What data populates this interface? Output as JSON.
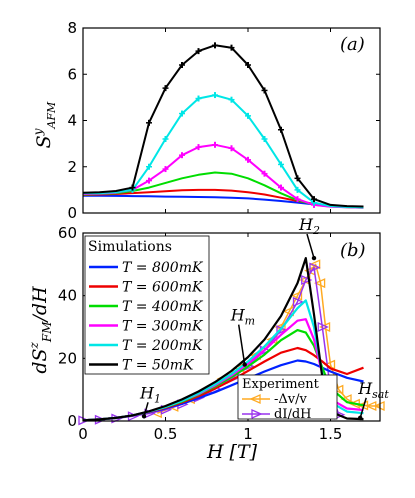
{
  "chart_data": [
    {
      "panel": "(a)",
      "type": "line",
      "ylabel": "S^y_AFM",
      "xlim": [
        0,
        1.8
      ],
      "ylim": [
        0,
        8
      ],
      "yticks": [
        0,
        2,
        4,
        6,
        8
      ],
      "x": [
        0,
        0.1,
        0.2,
        0.3,
        0.4,
        0.5,
        0.6,
        0.7,
        0.8,
        0.9,
        1.0,
        1.1,
        1.2,
        1.3,
        1.4,
        1.5,
        1.6,
        1.7
      ],
      "series": [
        {
          "name": "T = 800mK",
          "color": "#0022ff",
          "values": [
            0.75,
            0.75,
            0.74,
            0.73,
            0.72,
            0.71,
            0.7,
            0.69,
            0.68,
            0.66,
            0.63,
            0.58,
            0.52,
            0.45,
            0.37,
            0.3,
            0.26,
            0.24
          ]
        },
        {
          "name": "T = 600mK",
          "color": "#ee0000",
          "values": [
            0.78,
            0.8,
            0.82,
            0.86,
            0.9,
            0.94,
            0.98,
            1.0,
            1.0,
            0.97,
            0.9,
            0.8,
            0.66,
            0.52,
            0.4,
            0.31,
            0.26,
            0.24
          ]
        },
        {
          "name": "T = 400mK",
          "color": "#00dd00",
          "values": [
            0.8,
            0.82,
            0.85,
            0.95,
            1.1,
            1.3,
            1.5,
            1.65,
            1.75,
            1.7,
            1.5,
            1.2,
            0.85,
            0.55,
            0.36,
            0.28,
            0.25,
            0.23
          ]
        },
        {
          "name": "T = 300mK",
          "color": "#ff00ff",
          "values": [
            0.82,
            0.84,
            0.88,
            1.0,
            1.4,
            1.9,
            2.5,
            2.85,
            2.95,
            2.8,
            2.3,
            1.7,
            1.1,
            0.6,
            0.35,
            0.27,
            0.25,
            0.23
          ]
        },
        {
          "name": "T = 200mK",
          "color": "#00e6e6",
          "values": [
            0.85,
            0.86,
            0.9,
            1.0,
            2.0,
            3.2,
            4.3,
            4.95,
            5.1,
            4.9,
            4.2,
            3.2,
            2.1,
            1.0,
            0.45,
            0.3,
            0.26,
            0.24
          ]
        },
        {
          "name": "T = 50mK",
          "color": "#000000",
          "values": [
            0.88,
            0.9,
            0.95,
            1.1,
            3.9,
            5.4,
            6.4,
            7.0,
            7.25,
            7.15,
            6.4,
            5.3,
            3.6,
            1.5,
            0.6,
            0.35,
            0.3,
            0.28
          ]
        }
      ]
    },
    {
      "panel": "(b)",
      "type": "line",
      "xlabel": "H [T]",
      "ylabel": "dS^z_FM/dH",
      "xlim": [
        0,
        1.8
      ],
      "ylim": [
        0,
        60
      ],
      "xticks": [
        0,
        0.5,
        1,
        1.5
      ],
      "yticks": [
        0,
        20,
        40,
        60
      ],
      "legend_title": "Simulations",
      "x": [
        0,
        0.1,
        0.2,
        0.3,
        0.4,
        0.5,
        0.6,
        0.7,
        0.8,
        0.9,
        1.0,
        1.1,
        1.2,
        1.3,
        1.35,
        1.4,
        1.45,
        1.5,
        1.6,
        1.7
      ],
      "series": [
        {
          "name": "T = 800mK",
          "color": "#0022ff",
          "values": [
            0.2,
            0.5,
            1.0,
            1.8,
            2.8,
            4.0,
            5.5,
            7.3,
            9.2,
            11.4,
            13.6,
            15.8,
            17.8,
            19.3,
            19.0,
            18.2,
            17.0,
            15.8,
            13.8,
            12.6
          ]
        },
        {
          "name": "T = 600mK",
          "color": "#ee0000",
          "values": [
            0.2,
            0.5,
            1.0,
            1.8,
            2.9,
            4.2,
            5.9,
            7.9,
            10.3,
            13.0,
            16.0,
            19.0,
            21.8,
            23.3,
            22.6,
            21.0,
            19.0,
            16.8,
            15.0,
            17.0
          ]
        },
        {
          "name": "T = 400mK",
          "color": "#00dd00",
          "values": [
            0.2,
            0.5,
            1.0,
            1.8,
            3.0,
            4.4,
            6.2,
            8.4,
            11.0,
            14.0,
            17.4,
            21.2,
            25.8,
            29.0,
            28.2,
            24.0,
            17.0,
            10.5,
            6.0,
            5.0
          ]
        },
        {
          "name": "T = 300mK",
          "color": "#ff00ff",
          "values": [
            0.2,
            0.5,
            1.0,
            1.8,
            3.0,
            4.5,
            6.4,
            8.6,
            11.4,
            14.6,
            18.3,
            22.6,
            27.5,
            32.0,
            32.5,
            26.0,
            15.0,
            7.0,
            4.0,
            3.5
          ]
        },
        {
          "name": "T = 200mK",
          "color": "#00e6e6",
          "values": [
            0.2,
            0.5,
            1.0,
            1.8,
            3.0,
            4.5,
            6.4,
            8.8,
            11.7,
            15.0,
            19.0,
            23.8,
            29.4,
            36.0,
            38.5,
            30.0,
            15.0,
            6.0,
            3.0,
            2.5
          ]
        },
        {
          "name": "T = 50mK",
          "color": "#000000",
          "values": [
            0.2,
            0.5,
            1.0,
            1.8,
            3.1,
            4.8,
            6.9,
            9.4,
            12.4,
            16.0,
            20.4,
            26.0,
            33.5,
            44.0,
            52.0,
            34.0,
            14.0,
            3.0,
            0.8,
            0.6
          ]
        }
      ],
      "experiment": {
        "title": "Experiment",
        "series": [
          {
            "name": "-Δv/v",
            "color": "#ffaa22",
            "marker": "left-triangle",
            "x": [
              0.45,
              0.55,
              0.65,
              0.75,
              0.85,
              0.95,
              1.05,
              1.15,
              1.2,
              1.25,
              1.3,
              1.35,
              1.38,
              1.41,
              1.44,
              1.47,
              1.5,
              1.55,
              1.6,
              1.65,
              1.7,
              1.75,
              1.8
            ],
            "values": [
              2.5,
              4.5,
              7.0,
              10.0,
              13.5,
              17.0,
              21.0,
              26.0,
              30.0,
              35.0,
              40.0,
              45.0,
              48.0,
              50.0,
              44.0,
              30.0,
              18.0,
              10.0,
              7.0,
              5.5,
              5.0,
              4.8,
              4.8
            ]
          },
          {
            "name": "dI/dH",
            "color": "#9933ee",
            "marker": "right-triangle",
            "x": [
              0,
              0.1,
              0.2,
              0.3,
              0.4,
              0.5,
              0.6,
              0.7,
              0.8,
              0.9,
              1.0,
              1.1,
              1.2,
              1.3,
              1.35,
              1.4,
              1.45,
              1.5,
              1.55
            ],
            "values": [
              0.2,
              0.4,
              0.8,
              1.5,
              2.4,
              3.6,
              5.3,
              7.5,
              10.2,
              13.5,
              17.5,
              22.5,
              29.0,
              38.0,
              45.0,
              49.0,
              30.0,
              10.0,
              2.0
            ]
          }
        ]
      },
      "annotations": [
        {
          "label": "H",
          "sub": "1",
          "x": 0.37,
          "y": 1.5
        },
        {
          "label": "H",
          "sub": "m",
          "x": 0.98,
          "y": 18.0
        },
        {
          "label": "H",
          "sub": "2",
          "x": 1.4,
          "y": 52.0
        },
        {
          "label": "H",
          "sub": "sat",
          "x": 1.68,
          "y": 1.0
        }
      ]
    }
  ]
}
